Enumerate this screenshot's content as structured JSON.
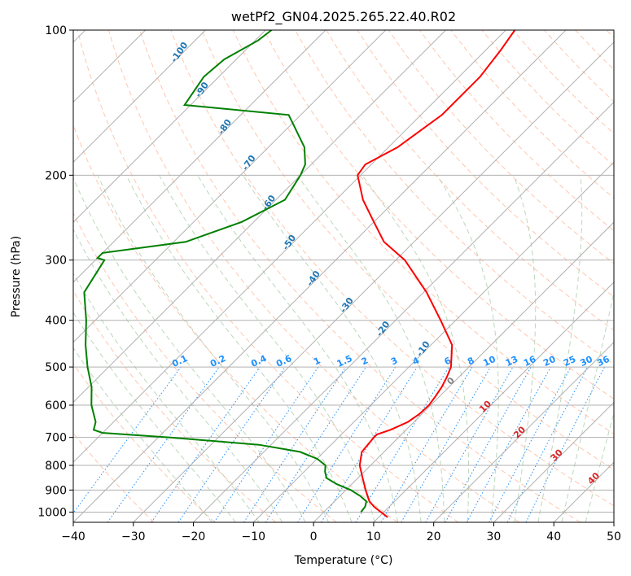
{
  "chart_data": {
    "type": "skew-t",
    "title": "wetPf2_GN04.2025.265.22.40.R02",
    "xlabel": "Temperature (°C)",
    "ylabel": "Pressure (hPa)",
    "xlim": [
      -40,
      50
    ],
    "ylim": [
      1050,
      100
    ],
    "x_ticks": [
      "−40",
      "−30",
      "−20",
      "−10",
      "0",
      "10",
      "20",
      "30",
      "40",
      "50"
    ],
    "y_ticks": [
      "100",
      "200",
      "300",
      "400",
      "500",
      "600",
      "700",
      "800",
      "900",
      "1000"
    ],
    "series": [
      {
        "role": "temperature",
        "color": "#ff0000",
        "points": [
          [
            1025,
            11.5
          ],
          [
            1000,
            9.5
          ],
          [
            975,
            7.5
          ],
          [
            950,
            5.8
          ],
          [
            900,
            3.3
          ],
          [
            850,
            0.8
          ],
          [
            800,
            -1.8
          ],
          [
            750,
            -3.7
          ],
          [
            700,
            -4.1
          ],
          [
            690,
            -4.1
          ],
          [
            675,
            -2.6
          ],
          [
            650,
            -1.0
          ],
          [
            625,
            -0.4
          ],
          [
            600,
            -0.3
          ],
          [
            575,
            -0.7
          ],
          [
            550,
            -1.2
          ],
          [
            525,
            -2.0
          ],
          [
            500,
            -3.0
          ],
          [
            450,
            -6.5
          ],
          [
            400,
            -12.5
          ],
          [
            350,
            -19.5
          ],
          [
            300,
            -28.5
          ],
          [
            275,
            -35.0
          ],
          [
            250,
            -40.0
          ],
          [
            225,
            -45.5
          ],
          [
            200,
            -50.5
          ],
          [
            190,
            -51.0
          ],
          [
            175,
            -48.5
          ],
          [
            150,
            -46.5
          ],
          [
            125,
            -46.5
          ],
          [
            110,
            -47.5
          ],
          [
            100,
            -48.5
          ]
        ]
      },
      {
        "role": "dewpoint",
        "color": "#008000",
        "points": [
          [
            1000,
            6.2
          ],
          [
            975,
            6.0
          ],
          [
            950,
            5.3
          ],
          [
            925,
            3.3
          ],
          [
            900,
            0.8
          ],
          [
            875,
            -2.5
          ],
          [
            850,
            -5.2
          ],
          [
            825,
            -6.5
          ],
          [
            800,
            -7.5
          ],
          [
            775,
            -10.0
          ],
          [
            750,
            -14.0
          ],
          [
            725,
            -22.0
          ],
          [
            700,
            -38.0
          ],
          [
            685,
            -50.0
          ],
          [
            675,
            -52.0
          ],
          [
            650,
            -53.0
          ],
          [
            600,
            -56.5
          ],
          [
            550,
            -59.5
          ],
          [
            500,
            -63.5
          ],
          [
            450,
            -67.5
          ],
          [
            400,
            -71.5
          ],
          [
            350,
            -76.5
          ],
          [
            300,
            -78.5
          ],
          [
            297,
            -80.0
          ],
          [
            290,
            -80.0
          ],
          [
            275,
            -68.0
          ],
          [
            250,
            -62.0
          ],
          [
            225,
            -58.5
          ],
          [
            200,
            -60.0
          ],
          [
            190,
            -61.0
          ],
          [
            175,
            -64.0
          ],
          [
            150,
            -72.0
          ],
          [
            143,
            -91.0
          ],
          [
            125,
            -92.5
          ],
          [
            115,
            -92.0
          ],
          [
            105,
            -89.5
          ],
          [
            100,
            -89.0
          ]
        ]
      }
    ],
    "mixing_ratio_labels": [
      "0.1",
      "0.2",
      "0.4",
      "0.6",
      "1",
      "1.5",
      "2",
      "3",
      "4",
      "6",
      "8",
      "10",
      "13",
      "16",
      "20",
      "25",
      "30",
      "36"
    ],
    "dry_adiabat_labels": [
      "-100",
      "-90",
      "-80",
      "-70",
      "-60",
      "-50",
      "-40",
      "-30",
      "-20",
      "-10"
    ],
    "moist_adiabat_labels": [
      "0",
      "10",
      "20",
      "30",
      "40"
    ],
    "colors": {
      "isotherm": "#b0b0b0",
      "isobar": "#b0b0b0",
      "dry_adiabat": "#ffa07a",
      "moist_adiabat": "#8fbc8f",
      "mixing_ratio": "#1e90ff"
    }
  }
}
